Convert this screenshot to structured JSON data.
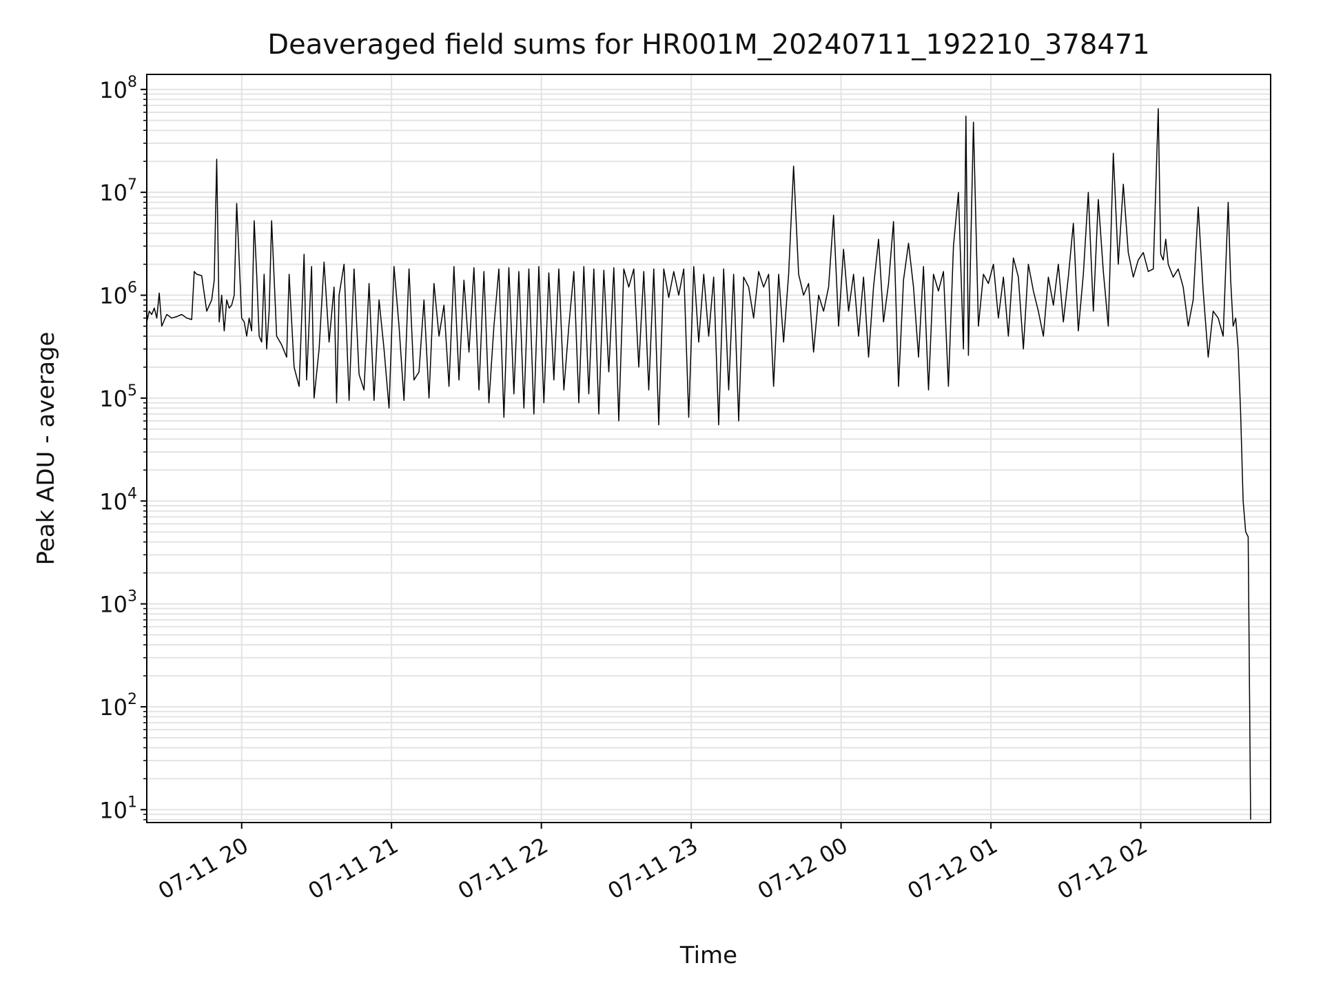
{
  "chart_data": {
    "type": "line",
    "title": "Deaveraged field sums for HR001M_20240711_192210_378471",
    "xlabel": "Time",
    "ylabel": "Peak ADU - average",
    "yscale": "log",
    "ylim": [
      7.5,
      140000000
    ],
    "xlim": [
      "2024-07-11T19:22",
      "2024-07-12T02:52"
    ],
    "grid": true,
    "line_color": "#000000",
    "grid_color": "#e3e3e3",
    "x_ticks": [
      "2024-07-11T20:00",
      "2024-07-11T21:00",
      "2024-07-11T22:00",
      "2024-07-11T23:00",
      "2024-07-12T00:00",
      "2024-07-12T01:00",
      "2024-07-12T02:00"
    ],
    "x_tick_labels": [
      "07-11 20",
      "07-11 21",
      "07-11 22",
      "07-11 23",
      "07-12 00",
      "07-12 01",
      "07-12 02"
    ],
    "y_ticks": [
      10,
      100,
      1000,
      10000,
      100000,
      1000000,
      10000000,
      100000000
    ],
    "y_tick_labels": [
      {
        "base": "10",
        "exp": "1"
      },
      {
        "base": "10",
        "exp": "2"
      },
      {
        "base": "10",
        "exp": "3"
      },
      {
        "base": "10",
        "exp": "4"
      },
      {
        "base": "10",
        "exp": "5"
      },
      {
        "base": "10",
        "exp": "6"
      },
      {
        "base": "10",
        "exp": "7"
      },
      {
        "base": "10",
        "exp": "8"
      }
    ],
    "series": [
      {
        "x": [
          "2024-07-11T19:22",
          "2024-07-11T19:23",
          "2024-07-11T19:24",
          "2024-07-11T19:25",
          "2024-07-11T19:26",
          "2024-07-11T19:27",
          "2024-07-11T19:28",
          "2024-07-11T19:30",
          "2024-07-11T19:32",
          "2024-07-11T19:34",
          "2024-07-11T19:36",
          "2024-07-11T19:38",
          "2024-07-11T19:40",
          "2024-07-11T19:41",
          "2024-07-11T19:42",
          "2024-07-11T19:44",
          "2024-07-11T19:46",
          "2024-07-11T19:48",
          "2024-07-11T19:49",
          "2024-07-11T19:50",
          "2024-07-11T19:51",
          "2024-07-11T19:52",
          "2024-07-11T19:53",
          "2024-07-11T19:54",
          "2024-07-11T19:55",
          "2024-07-11T19:56",
          "2024-07-11T19:57",
          "2024-07-11T19:58",
          "2024-07-11T19:59",
          "2024-07-11T20:00",
          "2024-07-11T20:01",
          "2024-07-11T20:02",
          "2024-07-11T20:03",
          "2024-07-11T20:04",
          "2024-07-11T20:05",
          "2024-07-11T20:06",
          "2024-07-11T20:07",
          "2024-07-11T20:08",
          "2024-07-11T20:09",
          "2024-07-11T20:10",
          "2024-07-11T20:11",
          "2024-07-11T20:12",
          "2024-07-11T20:14",
          "2024-07-11T20:16",
          "2024-07-11T20:18",
          "2024-07-11T20:19",
          "2024-07-11T20:21",
          "2024-07-11T20:23",
          "2024-07-11T20:25",
          "2024-07-11T20:26",
          "2024-07-11T20:28",
          "2024-07-11T20:29",
          "2024-07-11T20:31",
          "2024-07-11T20:33",
          "2024-07-11T20:35",
          "2024-07-11T20:37",
          "2024-07-11T20:38",
          "2024-07-11T20:39",
          "2024-07-11T20:41",
          "2024-07-11T20:43",
          "2024-07-11T20:45",
          "2024-07-11T20:47",
          "2024-07-11T20:49",
          "2024-07-11T20:51",
          "2024-07-11T20:53",
          "2024-07-11T20:55",
          "2024-07-11T20:57",
          "2024-07-11T20:59",
          "2024-07-11T21:01",
          "2024-07-11T21:03",
          "2024-07-11T21:05",
          "2024-07-11T21:07",
          "2024-07-11T21:09",
          "2024-07-11T21:11",
          "2024-07-11T21:13",
          "2024-07-11T21:15",
          "2024-07-11T21:17",
          "2024-07-11T21:19",
          "2024-07-11T21:21",
          "2024-07-11T21:23",
          "2024-07-11T21:25",
          "2024-07-11T21:27",
          "2024-07-11T21:29",
          "2024-07-11T21:31",
          "2024-07-11T21:33",
          "2024-07-11T21:35",
          "2024-07-11T21:37",
          "2024-07-11T21:39",
          "2024-07-11T21:41",
          "2024-07-11T21:43",
          "2024-07-11T21:45",
          "2024-07-11T21:47",
          "2024-07-11T21:49",
          "2024-07-11T21:51",
          "2024-07-11T21:53",
          "2024-07-11T21:55",
          "2024-07-11T21:57",
          "2024-07-11T21:59",
          "2024-07-11T22:01",
          "2024-07-11T22:03",
          "2024-07-11T22:05",
          "2024-07-11T22:07",
          "2024-07-11T22:09",
          "2024-07-11T22:11",
          "2024-07-11T22:13",
          "2024-07-11T22:15",
          "2024-07-11T22:17",
          "2024-07-11T22:19",
          "2024-07-11T22:21",
          "2024-07-11T22:23",
          "2024-07-11T22:25",
          "2024-07-11T22:27",
          "2024-07-11T22:29",
          "2024-07-11T22:31",
          "2024-07-11T22:33",
          "2024-07-11T22:35",
          "2024-07-11T22:37",
          "2024-07-11T22:39",
          "2024-07-11T22:41",
          "2024-07-11T22:43",
          "2024-07-11T22:45",
          "2024-07-11T22:47",
          "2024-07-11T22:49",
          "2024-07-11T22:51",
          "2024-07-11T22:53",
          "2024-07-11T22:55",
          "2024-07-11T22:57",
          "2024-07-11T22:59",
          "2024-07-11T23:01",
          "2024-07-11T23:03",
          "2024-07-11T23:05",
          "2024-07-11T23:07",
          "2024-07-11T23:09",
          "2024-07-11T23:11",
          "2024-07-11T23:13",
          "2024-07-11T23:15",
          "2024-07-11T23:17",
          "2024-07-11T23:19",
          "2024-07-11T23:21",
          "2024-07-11T23:23",
          "2024-07-11T23:25",
          "2024-07-11T23:27",
          "2024-07-11T23:29",
          "2024-07-11T23:31",
          "2024-07-11T23:33",
          "2024-07-11T23:35",
          "2024-07-11T23:37",
          "2024-07-11T23:39",
          "2024-07-11T23:41",
          "2024-07-11T23:43",
          "2024-07-11T23:45",
          "2024-07-11T23:47",
          "2024-07-11T23:49",
          "2024-07-11T23:51",
          "2024-07-11T23:53",
          "2024-07-11T23:55",
          "2024-07-11T23:57",
          "2024-07-11T23:59",
          "2024-07-12T00:01",
          "2024-07-12T00:03",
          "2024-07-12T00:05",
          "2024-07-12T00:07",
          "2024-07-12T00:09",
          "2024-07-12T00:11",
          "2024-07-12T00:13",
          "2024-07-12T00:15",
          "2024-07-12T00:17",
          "2024-07-12T00:19",
          "2024-07-12T00:21",
          "2024-07-12T00:23",
          "2024-07-12T00:25",
          "2024-07-12T00:27",
          "2024-07-12T00:29",
          "2024-07-12T00:31",
          "2024-07-12T00:33",
          "2024-07-12T00:35",
          "2024-07-12T00:37",
          "2024-07-12T00:39",
          "2024-07-12T00:41",
          "2024-07-12T00:43",
          "2024-07-12T00:45",
          "2024-07-12T00:47",
          "2024-07-12T00:49",
          "2024-07-12T00:50",
          "2024-07-12T00:51",
          "2024-07-12T00:53",
          "2024-07-12T00:55",
          "2024-07-12T00:57",
          "2024-07-12T00:59",
          "2024-07-12T01:01",
          "2024-07-12T01:03",
          "2024-07-12T01:05",
          "2024-07-12T01:07",
          "2024-07-12T01:09",
          "2024-07-12T01:11",
          "2024-07-12T01:13",
          "2024-07-12T01:15",
          "2024-07-12T01:17",
          "2024-07-12T01:19",
          "2024-07-12T01:21",
          "2024-07-12T01:23",
          "2024-07-12T01:25",
          "2024-07-12T01:27",
          "2024-07-12T01:29",
          "2024-07-12T01:31",
          "2024-07-12T01:33",
          "2024-07-12T01:35",
          "2024-07-12T01:37",
          "2024-07-12T01:39",
          "2024-07-12T01:41",
          "2024-07-12T01:43",
          "2024-07-12T01:45",
          "2024-07-12T01:47",
          "2024-07-12T01:49",
          "2024-07-12T01:51",
          "2024-07-12T01:53",
          "2024-07-12T01:55",
          "2024-07-12T01:57",
          "2024-07-12T01:59",
          "2024-07-12T02:01",
          "2024-07-12T02:03",
          "2024-07-12T02:05",
          "2024-07-12T02:07",
          "2024-07-12T02:08",
          "2024-07-12T02:09",
          "2024-07-12T02:10",
          "2024-07-12T02:11",
          "2024-07-12T02:13",
          "2024-07-12T02:15",
          "2024-07-12T02:17",
          "2024-07-12T02:19",
          "2024-07-12T02:21",
          "2024-07-12T02:23",
          "2024-07-12T02:25",
          "2024-07-12T02:27",
          "2024-07-12T02:29",
          "2024-07-12T02:31",
          "2024-07-12T02:33",
          "2024-07-12T02:35",
          "2024-07-12T02:36",
          "2024-07-12T02:37",
          "2024-07-12T02:38",
          "2024-07-12T02:39",
          "2024-07-12T02:40",
          "2024-07-12T02:41",
          "2024-07-12T02:42",
          "2024-07-12T02:43",
          "2024-07-12T02:44"
        ],
        "y": [
          550000,
          700000,
          650000,
          750000,
          600000,
          1050000,
          500000,
          650000,
          600000,
          620000,
          650000,
          600000,
          580000,
          1700000,
          1600000,
          1550000,
          700000,
          900000,
          1400000,
          21000000,
          550000,
          1000000,
          450000,
          900000,
          750000,
          800000,
          1000000,
          7800000,
          2200000,
          600000,
          550000,
          400000,
          600000,
          450000,
          5300000,
          1600000,
          400000,
          350000,
          1600000,
          300000,
          700000,
          5300000,
          400000,
          330000,
          250000,
          1600000,
          200000,
          130000,
          2500000,
          150000,
          1900000,
          100000,
          300000,
          2100000,
          350000,
          1200000,
          90000,
          1000000,
          2000000,
          95000,
          1800000,
          170000,
          120000,
          1300000,
          95000,
          900000,
          300000,
          80000,
          1900000,
          500000,
          95000,
          1800000,
          150000,
          180000,
          900000,
          100000,
          1300000,
          400000,
          800000,
          130000,
          1900000,
          150000,
          1400000,
          280000,
          1850000,
          120000,
          1700000,
          90000,
          500000,
          1800000,
          65000,
          1850000,
          110000,
          1700000,
          80000,
          1800000,
          70000,
          1900000,
          90000,
          1650000,
          150000,
          1800000,
          120000,
          500000,
          1700000,
          90000,
          1900000,
          110000,
          1800000,
          70000,
          1750000,
          180000,
          1850000,
          60000,
          1800000,
          1200000,
          1800000,
          200000,
          1700000,
          120000,
          1800000,
          55000,
          1800000,
          950000,
          1700000,
          1000000,
          1800000,
          65000,
          1900000,
          350000,
          1600000,
          400000,
          1500000,
          55000,
          1800000,
          120000,
          1600000,
          60000,
          1500000,
          1200000,
          600000,
          1700000,
          1200000,
          1600000,
          130000,
          1600000,
          350000,
          1600000,
          18000000,
          1600000,
          1000000,
          1300000,
          280000,
          1000000,
          700000,
          1200000,
          6000000,
          500000,
          2800000,
          700000,
          1600000,
          400000,
          1500000,
          250000,
          1200000,
          3500000,
          550000,
          1300000,
          5200000,
          130000,
          1400000,
          3200000,
          1200000,
          250000,
          1900000,
          120000,
          1600000,
          1100000,
          1700000,
          130000,
          3000000,
          10000000,
          300000,
          55000000,
          260000,
          48000000,
          500000,
          1600000,
          1300000,
          2000000,
          600000,
          1500000,
          400000,
          2300000,
          1500000,
          300000,
          2000000,
          1100000,
          700000,
          400000,
          1500000,
          800000,
          2000000,
          550000,
          1500000,
          5000000,
          450000,
          1600000,
          10000000,
          700000,
          8500000,
          1700000,
          500000,
          24000000,
          2000000,
          12000000,
          2600000,
          1500000,
          2200000,
          2600000,
          1700000,
          1800000,
          65000000,
          2500000,
          2200000,
          3500000,
          2000000,
          1500000,
          1800000,
          1200000,
          500000,
          900000,
          7200000,
          1100000,
          250000,
          700000,
          600000,
          400000,
          8000000,
          1400000,
          500000,
          600000,
          300000,
          70000,
          10000,
          5000,
          4500,
          8
        ]
      }
    ]
  }
}
